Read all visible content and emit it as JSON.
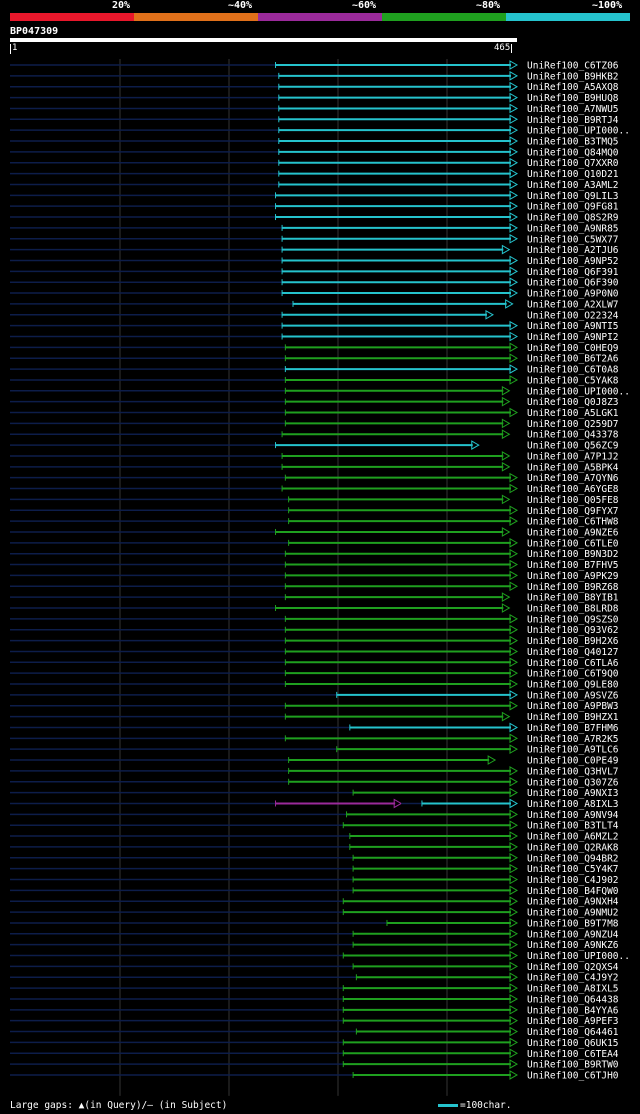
{
  "legend": {
    "labels": [
      "20%",
      "~40%",
      "~60%",
      "~80%",
      "~100%"
    ],
    "colors": [
      "#e8172b",
      "#e0701a",
      "#9b2a9b",
      "#1fa01f",
      "#25c3cd"
    ]
  },
  "query": {
    "name": "BP047309",
    "start": "1",
    "end": "465"
  },
  "footer": {
    "gaps_text": "Large gaps: ▲(in Query)/– (in Subject)",
    "scale_text": "=100char."
  },
  "chart_data": {
    "type": "alignment",
    "x_range": [
      1,
      465
    ],
    "hits": [
      {
        "label": "UniRef100_C6TZ06",
        "start": 244,
        "end": 465,
        "color": "cyan"
      },
      {
        "label": "UniRef100_B9HKB2",
        "start": 247,
        "end": 465,
        "color": "cyan"
      },
      {
        "label": "UniRef100_A5AXQ8",
        "start": 247,
        "end": 465,
        "color": "cyan"
      },
      {
        "label": "UniRef100_B9HUQ8",
        "start": 247,
        "end": 465,
        "color": "cyan"
      },
      {
        "label": "UniRef100_A7NWU5",
        "start": 247,
        "end": 465,
        "color": "cyan"
      },
      {
        "label": "UniRef100_B9RTJ4",
        "start": 247,
        "end": 465,
        "color": "cyan"
      },
      {
        "label": "UniRef100_UPI000..",
        "start": 247,
        "end": 465,
        "color": "cyan"
      },
      {
        "label": "UniRef100_B3TMQ5",
        "start": 247,
        "end": 465,
        "color": "cyan"
      },
      {
        "label": "UniRef100_Q84MQ0",
        "start": 247,
        "end": 465,
        "color": "cyan"
      },
      {
        "label": "UniRef100_Q7XXR0",
        "start": 247,
        "end": 465,
        "color": "cyan"
      },
      {
        "label": "UniRef100_Q10D21",
        "start": 247,
        "end": 465,
        "color": "cyan"
      },
      {
        "label": "UniRef100_A3AML2",
        "start": 247,
        "end": 465,
        "color": "cyan"
      },
      {
        "label": "UniRef100_Q9LIL3",
        "start": 244,
        "end": 465,
        "color": "cyan"
      },
      {
        "label": "UniRef100_Q9FG81",
        "start": 244,
        "end": 465,
        "color": "cyan"
      },
      {
        "label": "UniRef100_Q8S2R9",
        "start": 244,
        "end": 465,
        "color": "cyan"
      },
      {
        "label": "UniRef100_A9NR85",
        "start": 250,
        "end": 465,
        "color": "cyan"
      },
      {
        "label": "UniRef100_C5WX77",
        "start": 250,
        "end": 465,
        "color": "cyan"
      },
      {
        "label": "UniRef100_A2TJU6",
        "start": 250,
        "end": 458,
        "color": "cyan"
      },
      {
        "label": "UniRef100_A9NP52",
        "start": 250,
        "end": 465,
        "color": "cyan"
      },
      {
        "label": "UniRef100_Q6F391",
        "start": 250,
        "end": 465,
        "color": "cyan"
      },
      {
        "label": "UniRef100_Q6F390",
        "start": 250,
        "end": 465,
        "color": "cyan"
      },
      {
        "label": "UniRef100_A9P0N0",
        "start": 250,
        "end": 465,
        "color": "cyan"
      },
      {
        "label": "UniRef100_A2XLW7",
        "start": 260,
        "end": 461,
        "color": "cyan"
      },
      {
        "label": "UniRef100_O22324",
        "start": 250,
        "end": 443,
        "color": "cyan"
      },
      {
        "label": "UniRef100_A9NTI5",
        "start": 250,
        "end": 465,
        "color": "cyan"
      },
      {
        "label": "UniRef100_A9NPI2",
        "start": 250,
        "end": 465,
        "color": "cyan"
      },
      {
        "label": "UniRef100_C0HEQ9",
        "start": 253,
        "end": 465,
        "color": "green"
      },
      {
        "label": "UniRef100_B6T2A6",
        "start": 253,
        "end": 465,
        "color": "green"
      },
      {
        "label": "UniRef100_C6T0A8",
        "start": 253,
        "end": 465,
        "color": "cyan"
      },
      {
        "label": "UniRef100_C5YAK8",
        "start": 253,
        "end": 465,
        "color": "green"
      },
      {
        "label": "UniRef100_UPI000..",
        "start": 253,
        "end": 458,
        "color": "green"
      },
      {
        "label": "UniRef100_Q0J8Z3",
        "start": 253,
        "end": 458,
        "color": "green"
      },
      {
        "label": "UniRef100_A5LGK1",
        "start": 253,
        "end": 465,
        "color": "green"
      },
      {
        "label": "UniRef100_Q259D7",
        "start": 253,
        "end": 458,
        "color": "green"
      },
      {
        "label": "UniRef100_Q43378",
        "start": 250,
        "end": 458,
        "color": "green"
      },
      {
        "label": "UniRef100_Q56ZC9",
        "start": 244,
        "end": 430,
        "color": "cyan"
      },
      {
        "label": "UniRef100_A7P1J2",
        "start": 250,
        "end": 458,
        "color": "green"
      },
      {
        "label": "UniRef100_A5BPK4",
        "start": 250,
        "end": 458,
        "color": "green"
      },
      {
        "label": "UniRef100_A7QYN6",
        "start": 253,
        "end": 465,
        "color": "green"
      },
      {
        "label": "UniRef100_A6YGE8",
        "start": 250,
        "end": 465,
        "color": "green"
      },
      {
        "label": "UniRef100_Q05FE8",
        "start": 256,
        "end": 458,
        "color": "green"
      },
      {
        "label": "UniRef100_Q9FYX7",
        "start": 256,
        "end": 465,
        "color": "green"
      },
      {
        "label": "UniRef100_C6THW8",
        "start": 256,
        "end": 465,
        "color": "green"
      },
      {
        "label": "UniRef100_A9NZE6",
        "start": 244,
        "end": 458,
        "color": "green"
      },
      {
        "label": "UniRef100_C6TLE0",
        "start": 256,
        "end": 465,
        "color": "green"
      },
      {
        "label": "UniRef100_B9N3D2",
        "start": 253,
        "end": 465,
        "color": "green"
      },
      {
        "label": "UniRef100_B7FHV5",
        "start": 253,
        "end": 465,
        "color": "green"
      },
      {
        "label": "UniRef100_A9PK29",
        "start": 253,
        "end": 465,
        "color": "green"
      },
      {
        "label": "UniRef100_B9RZ68",
        "start": 253,
        "end": 465,
        "color": "green"
      },
      {
        "label": "UniRef100_B8YIB1",
        "start": 253,
        "end": 458,
        "color": "green"
      },
      {
        "label": "UniRef100_B8LRD8",
        "start": 244,
        "end": 458,
        "color": "green"
      },
      {
        "label": "UniRef100_Q9SZS0",
        "start": 253,
        "end": 465,
        "color": "green"
      },
      {
        "label": "UniRef100_Q93V62",
        "start": 253,
        "end": 465,
        "color": "green"
      },
      {
        "label": "UniRef100_B9H2X6",
        "start": 253,
        "end": 465,
        "color": "green"
      },
      {
        "label": "UniRef100_Q40127",
        "start": 253,
        "end": 465,
        "color": "green"
      },
      {
        "label": "UniRef100_C6TLA6",
        "start": 253,
        "end": 465,
        "color": "green"
      },
      {
        "label": "UniRef100_C6T9Q0",
        "start": 253,
        "end": 465,
        "color": "green"
      },
      {
        "label": "UniRef100_Q9LE80",
        "start": 253,
        "end": 465,
        "color": "green"
      },
      {
        "label": "UniRef100_A9SVZ6",
        "start": 300,
        "end": 465,
        "color": "cyan"
      },
      {
        "label": "UniRef100_A9PBW3",
        "start": 253,
        "end": 465,
        "color": "green"
      },
      {
        "label": "UniRef100_B9HZX1",
        "start": 253,
        "end": 458,
        "color": "green"
      },
      {
        "label": "UniRef100_B7FHM6",
        "start": 312,
        "end": 465,
        "color": "cyan"
      },
      {
        "label": "UniRef100_A7R2K5",
        "start": 253,
        "end": 465,
        "color": "green"
      },
      {
        "label": "UniRef100_A9TLC6",
        "start": 300,
        "end": 465,
        "color": "green"
      },
      {
        "label": "UniRef100_C0PE49",
        "start": 256,
        "end": 445,
        "color": "green"
      },
      {
        "label": "UniRef100_Q3HVL7",
        "start": 256,
        "end": 465,
        "color": "green"
      },
      {
        "label": "UniRef100_Q307Z6",
        "start": 256,
        "end": 465,
        "color": "green"
      },
      {
        "label": "UniRef100_A9NXI3",
        "start": 315,
        "end": 465,
        "color": "green"
      },
      {
        "label": "UniRef100_A8IXL3",
        "start": 244,
        "end": 359,
        "color": "purple",
        "start2": 378,
        "end2": 465,
        "color2": "cyan"
      },
      {
        "label": "UniRef100_A9NV94",
        "start": 309,
        "end": 465,
        "color": "green"
      },
      {
        "label": "UniRef100_B3TLT4",
        "start": 306,
        "end": 465,
        "color": "green"
      },
      {
        "label": "UniRef100_A6MZL2",
        "start": 312,
        "end": 465,
        "color": "green"
      },
      {
        "label": "UniRef100_Q2RAK8",
        "start": 312,
        "end": 465,
        "color": "green"
      },
      {
        "label": "UniRef100_Q94BR2",
        "start": 315,
        "end": 465,
        "color": "green"
      },
      {
        "label": "UniRef100_C5Y4K7",
        "start": 315,
        "end": 465,
        "color": "green"
      },
      {
        "label": "UniRef100_C4J902",
        "start": 315,
        "end": 465,
        "color": "green"
      },
      {
        "label": "UniRef100_B4FQW0",
        "start": 315,
        "end": 465,
        "color": "green"
      },
      {
        "label": "UniRef100_A9NXH4",
        "start": 306,
        "end": 465,
        "color": "green"
      },
      {
        "label": "UniRef100_A9NMU2",
        "start": 306,
        "end": 465,
        "color": "green"
      },
      {
        "label": "UniRef100_B9T7M8",
        "start": 346,
        "end": 465,
        "color": "green"
      },
      {
        "label": "UniRef100_A9NZU4",
        "start": 315,
        "end": 465,
        "color": "green"
      },
      {
        "label": "UniRef100_A9NKZ6",
        "start": 315,
        "end": 465,
        "color": "green"
      },
      {
        "label": "UniRef100_UPI000..",
        "start": 306,
        "end": 465,
        "color": "green"
      },
      {
        "label": "UniRef100_Q2QXS4",
        "start": 315,
        "end": 465,
        "color": "green"
      },
      {
        "label": "UniRef100_C4J9Y2",
        "start": 318,
        "end": 465,
        "color": "green"
      },
      {
        "label": "UniRef100_A8IXL5",
        "start": 306,
        "end": 465,
        "color": "green"
      },
      {
        "label": "UniRef100_Q64438",
        "start": 306,
        "end": 465,
        "color": "green"
      },
      {
        "label": "UniRef100_B4YYA6",
        "start": 306,
        "end": 465,
        "color": "green"
      },
      {
        "label": "UniRef100_A9PEF3",
        "start": 306,
        "end": 465,
        "color": "green"
      },
      {
        "label": "UniRef100_Q64461",
        "start": 318,
        "end": 465,
        "color": "green"
      },
      {
        "label": "UniRef100_Q6UK15",
        "start": 306,
        "end": 465,
        "color": "green"
      },
      {
        "label": "UniRef100_C6TEA4",
        "start": 306,
        "end": 465,
        "color": "green"
      },
      {
        "label": "UniRef100_B9RTW0",
        "start": 306,
        "end": 465,
        "color": "green"
      },
      {
        "label": "UniRef100_C6TJH0",
        "start": 315,
        "end": 465,
        "color": "green"
      }
    ]
  }
}
